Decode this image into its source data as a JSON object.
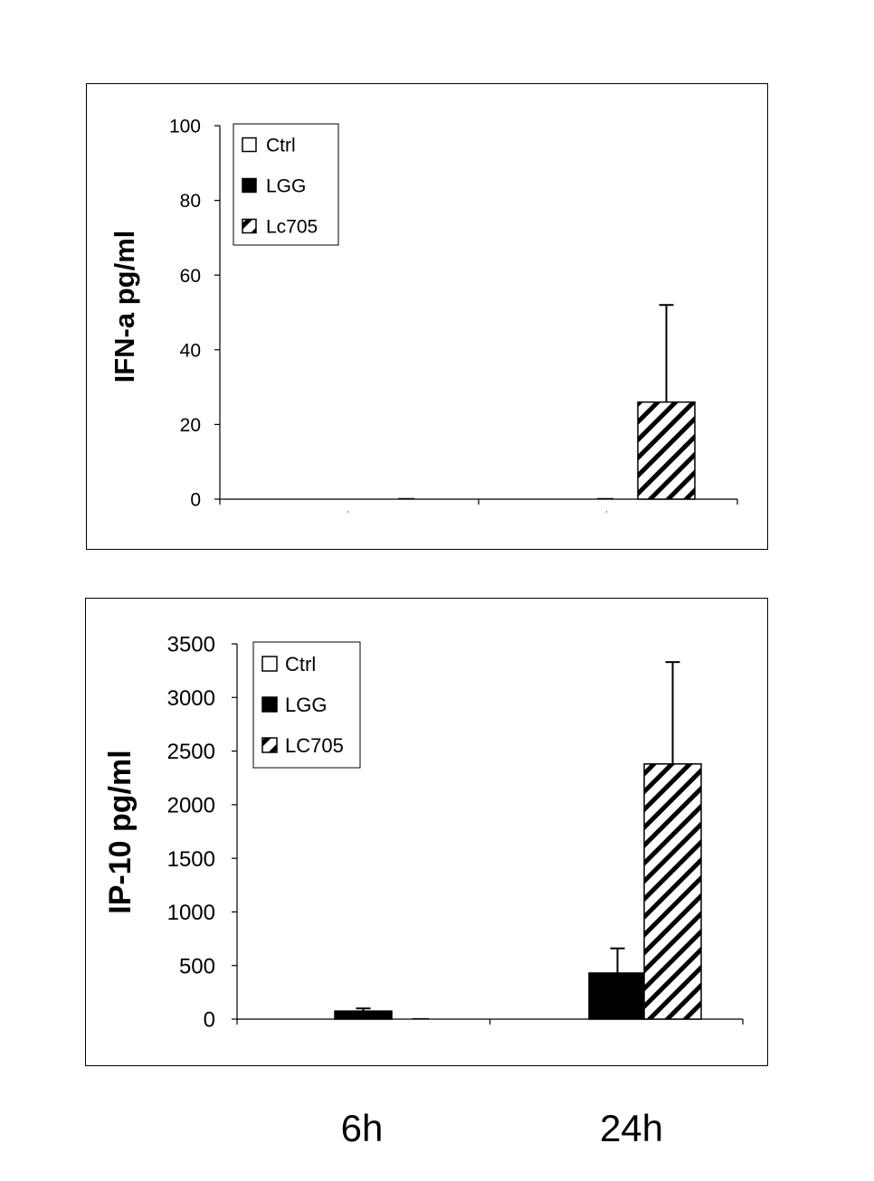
{
  "categories": [
    "6h",
    "24h"
  ],
  "chart_data": [
    {
      "type": "bar",
      "ylabel": "IFN-a pg/ml",
      "ylim": [
        0,
        100
      ],
      "yticks": [
        0,
        20,
        40,
        60,
        80,
        100
      ],
      "categories": [
        "6h",
        "24h"
      ],
      "legend_position": "top-left",
      "series": [
        {
          "name": "Ctrl",
          "values": [
            0,
            0
          ],
          "errors": [
            0,
            0
          ],
          "fill": "white"
        },
        {
          "name": "LGG",
          "values": [
            0,
            0
          ],
          "errors": [
            0,
            0
          ],
          "fill": "black"
        },
        {
          "name": "Lc705",
          "values": [
            0,
            26
          ],
          "errors": [
            0,
            26
          ],
          "fill": "hatch"
        }
      ]
    },
    {
      "type": "bar",
      "ylabel": "IP-10 pg/ml",
      "ylim": [
        0,
        3500
      ],
      "yticks": [
        0,
        500,
        1000,
        1500,
        2000,
        2500,
        3000,
        3500
      ],
      "categories": [
        "6h",
        "24h"
      ],
      "legend_position": "top-left",
      "series": [
        {
          "name": "Ctrl",
          "values": [
            0,
            0
          ],
          "errors": [
            0,
            0
          ],
          "fill": "white"
        },
        {
          "name": "LGG",
          "values": [
            75,
            430
          ],
          "errors": [
            25,
            230
          ],
          "fill": "black"
        },
        {
          "name": "LC705",
          "values": [
            0,
            2380
          ],
          "errors": [
            0,
            950
          ],
          "fill": "hatch"
        }
      ]
    }
  ]
}
